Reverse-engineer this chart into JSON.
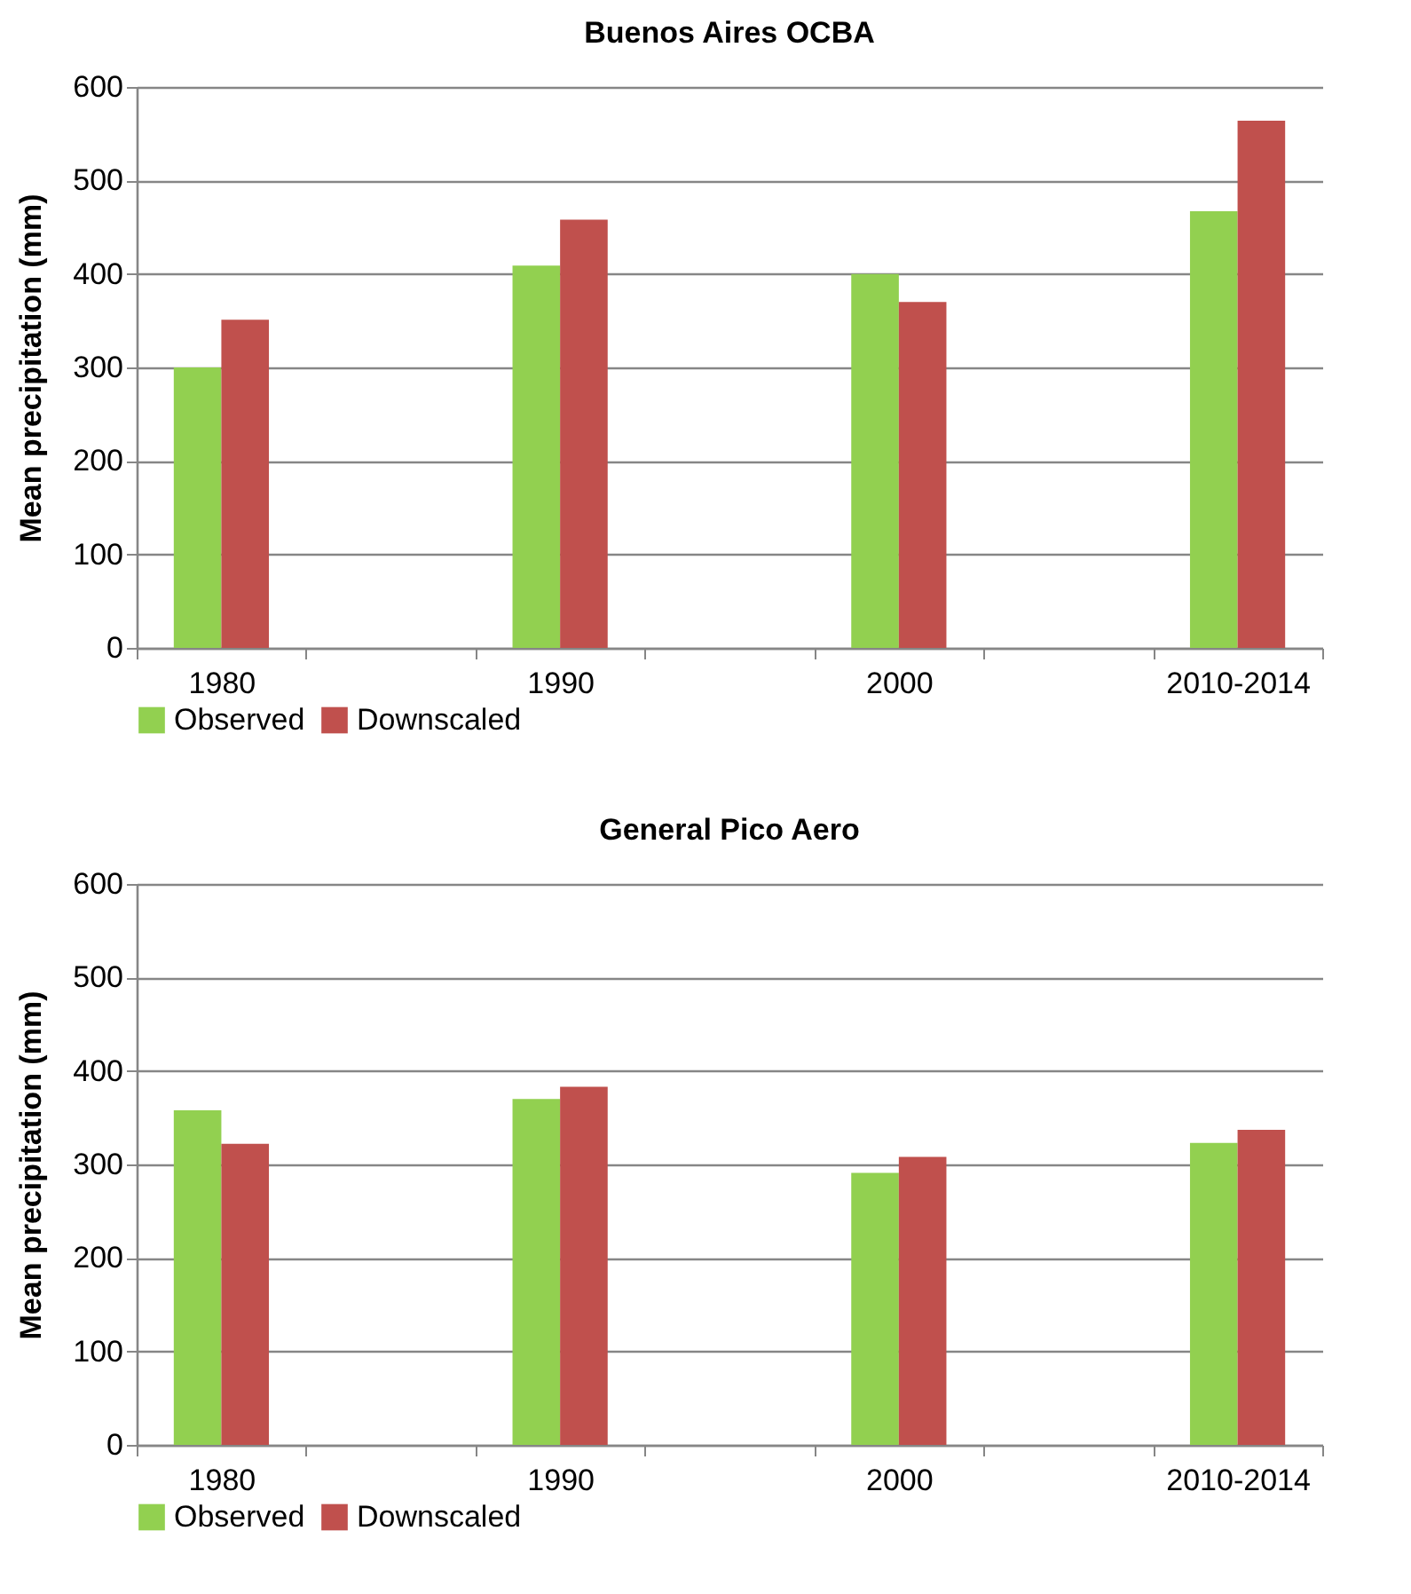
{
  "chart_data": [
    {
      "type": "bar",
      "title": "Buenos Aires OCBA",
      "ylabel": "Mean precipitation (mm)",
      "categories": [
        "1980",
        null,
        "1990",
        null,
        "2000",
        null,
        "2010-2014"
      ],
      "series": [
        {
          "name": "Observed",
          "color": "#92d050",
          "values": [
            300,
            null,
            409,
            null,
            400,
            null,
            467
          ]
        },
        {
          "name": "Downscaled",
          "color": "#c0504d",
          "values": [
            351,
            null,
            458,
            null,
            370,
            null,
            564
          ]
        }
      ],
      "ylim": [
        0,
        600
      ],
      "yticks": [
        0,
        100,
        200,
        300,
        400,
        500,
        600
      ],
      "grid": "y",
      "legend": "bottom"
    },
    {
      "type": "bar",
      "title": "General Pico Aero",
      "ylabel": "Mean precipitation (mm)",
      "categories": [
        "1980",
        null,
        "1990",
        null,
        "2000",
        null,
        "2010-2014"
      ],
      "series": [
        {
          "name": "Observed",
          "color": "#92d050",
          "values": [
            358,
            null,
            370,
            null,
            291,
            null,
            323
          ]
        },
        {
          "name": "Downscaled",
          "color": "#c0504d",
          "values": [
            322,
            null,
            383,
            null,
            308,
            null,
            337
          ]
        }
      ],
      "ylim": [
        0,
        600
      ],
      "yticks": [
        0,
        100,
        200,
        300,
        400,
        500,
        600
      ],
      "grid": "y",
      "legend": "bottom"
    }
  ]
}
